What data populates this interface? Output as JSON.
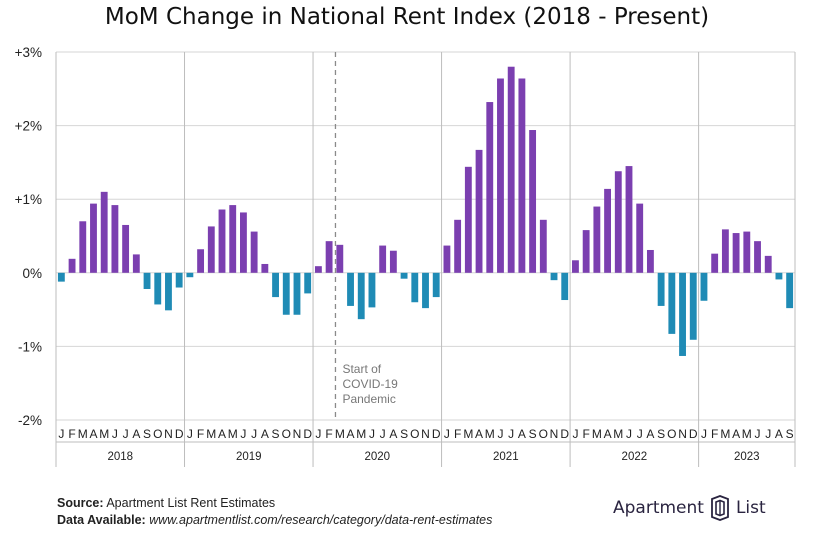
{
  "chart_data": {
    "type": "bar",
    "title": "MoM Change in National Rent Index (2018 - Present)",
    "ylim": [
      -2,
      3
    ],
    "yticks": [
      {
        "value": 3,
        "label": "+3%"
      },
      {
        "value": 2,
        "label": "+2%"
      },
      {
        "value": 1,
        "label": "+1%"
      },
      {
        "value": 0,
        "label": "0%"
      },
      {
        "value": -1,
        "label": "-1%"
      },
      {
        "value": -2,
        "label": "-2%"
      }
    ],
    "grid": true,
    "positive_color": "#7b3fb0",
    "negative_color": "#1f8bb5",
    "years": [
      {
        "label": "2018",
        "months": [
          "J",
          "F",
          "M",
          "A",
          "M",
          "J",
          "J",
          "A",
          "S",
          "O",
          "N",
          "D"
        ],
        "values": [
          -0.12,
          0.19,
          0.7,
          0.94,
          1.1,
          0.92,
          0.65,
          0.25,
          -0.22,
          -0.43,
          -0.51,
          -0.2
        ]
      },
      {
        "label": "2019",
        "months": [
          "J",
          "F",
          "M",
          "A",
          "M",
          "J",
          "J",
          "A",
          "S",
          "O",
          "N",
          "D"
        ],
        "values": [
          -0.06,
          0.32,
          0.63,
          0.86,
          0.92,
          0.82,
          0.56,
          0.12,
          -0.33,
          -0.57,
          -0.57,
          -0.28
        ]
      },
      {
        "label": "2020",
        "months": [
          "J",
          "F",
          "M",
          "A",
          "M",
          "J",
          "J",
          "A",
          "S",
          "O",
          "N",
          "D"
        ],
        "values": [
          0.09,
          0.43,
          0.38,
          -0.45,
          -0.63,
          -0.47,
          0.37,
          0.3,
          -0.08,
          -0.4,
          -0.48,
          -0.33
        ]
      },
      {
        "label": "2021",
        "months": [
          "J",
          "F",
          "M",
          "A",
          "M",
          "J",
          "J",
          "A",
          "S",
          "O",
          "N",
          "D"
        ],
        "values": [
          0.37,
          0.72,
          1.44,
          1.67,
          2.32,
          2.64,
          2.8,
          2.64,
          1.94,
          0.72,
          -0.1,
          -0.37
        ]
      },
      {
        "label": "2022",
        "months": [
          "J",
          "F",
          "M",
          "A",
          "M",
          "J",
          "J",
          "A",
          "S",
          "O",
          "N",
          "D"
        ],
        "values": [
          0.17,
          0.58,
          0.9,
          1.14,
          1.38,
          1.45,
          0.94,
          0.31,
          -0.45,
          -0.83,
          -1.13,
          -0.91
        ]
      },
      {
        "label": "2023",
        "months": [
          "J",
          "F",
          "M",
          "A",
          "M",
          "J",
          "J",
          "A",
          "S"
        ],
        "values": [
          -0.38,
          0.26,
          0.59,
          0.54,
          0.56,
          0.43,
          0.23,
          -0.09,
          -0.48
        ]
      }
    ],
    "annotation": {
      "lines": [
        "Start of",
        "COVID-19",
        "Pandemic"
      ]
    }
  },
  "footer": {
    "source_label": "Source:",
    "source_text": "Apartment List Rent Estimates",
    "data_label": "Data Available:",
    "data_text": "www.apartmentlist.com/research/category/data-rent-estimates"
  },
  "logo": {
    "word1": "Apartment",
    "word2": "List",
    "icon": "apartment-list-logo-icon"
  }
}
